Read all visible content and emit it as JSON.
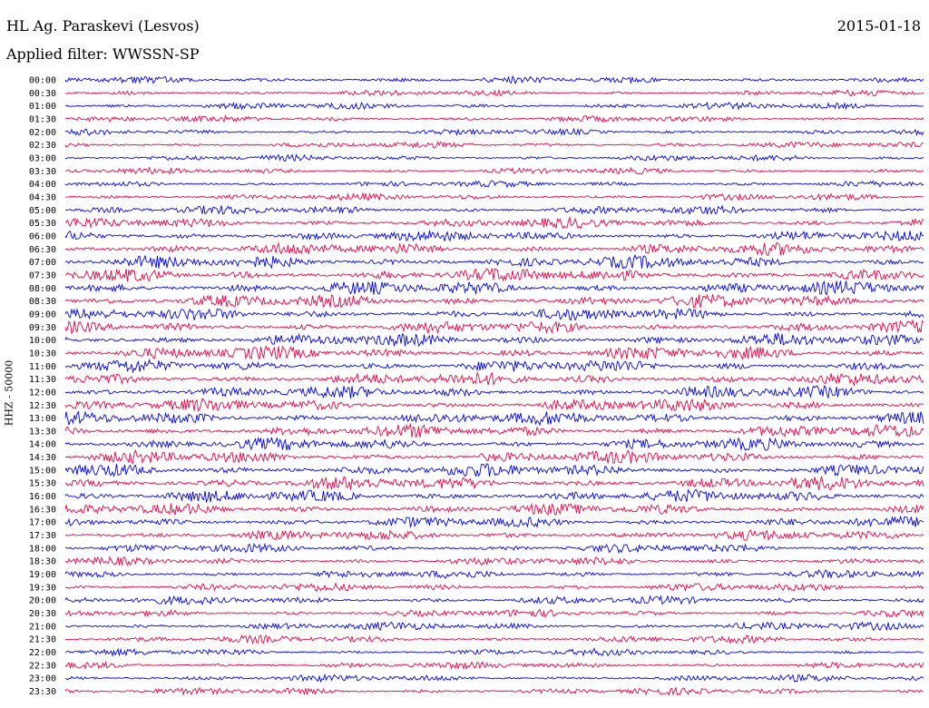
{
  "header": {
    "station": "HL Ag. Paraskevi (Lesvos)",
    "date": "2015-01-18",
    "filter": "Applied filter: WWSSN-SP"
  },
  "chart_data": {
    "type": "line",
    "title": "HL Ag. Paraskevi (Lesvos)",
    "ylabel": "HHZ - 50000",
    "trace_colors": [
      "#0000ee",
      "#ee0044"
    ],
    "rows": [
      {
        "label": "00:00",
        "level": 0.35
      },
      {
        "label": "00:30",
        "level": 0.3
      },
      {
        "label": "01:00",
        "level": 0.35
      },
      {
        "label": "01:30",
        "level": 0.3
      },
      {
        "label": "02:00",
        "level": 0.3
      },
      {
        "label": "02:30",
        "level": 0.3
      },
      {
        "label": "03:00",
        "level": 0.3
      },
      {
        "label": "03:30",
        "level": 0.3
      },
      {
        "label": "04:00",
        "level": 0.3
      },
      {
        "label": "04:30",
        "level": 0.35
      },
      {
        "label": "05:00",
        "level": 0.5
      },
      {
        "label": "05:30",
        "level": 0.6
      },
      {
        "label": "06:00",
        "level": 0.65
      },
      {
        "label": "06:30",
        "level": 0.75
      },
      {
        "label": "07:00",
        "level": 0.8
      },
      {
        "label": "07:30",
        "level": 0.85
      },
      {
        "label": "08:00",
        "level": 0.85
      },
      {
        "label": "08:30",
        "level": 0.8
      },
      {
        "label": "09:00",
        "level": 0.75
      },
      {
        "label": "09:30",
        "level": 0.75
      },
      {
        "label": "10:00",
        "level": 0.8
      },
      {
        "label": "10:30",
        "level": 0.85
      },
      {
        "label": "11:00",
        "level": 0.8
      },
      {
        "label": "11:30",
        "level": 0.8
      },
      {
        "label": "12:00",
        "level": 0.75
      },
      {
        "label": "12:30",
        "level": 0.8
      },
      {
        "label": "13:00",
        "level": 0.85
      },
      {
        "label": "13:30",
        "level": 0.8
      },
      {
        "label": "14:00",
        "level": 0.75
      },
      {
        "label": "14:30",
        "level": 0.8
      },
      {
        "label": "15:00",
        "level": 0.85
      },
      {
        "label": "15:30",
        "level": 0.85
      },
      {
        "label": "16:00",
        "level": 0.75
      },
      {
        "label": "16:30",
        "level": 0.7
      },
      {
        "label": "17:00",
        "level": 0.65
      },
      {
        "label": "17:30",
        "level": 0.6
      },
      {
        "label": "18:00",
        "level": 0.5
      },
      {
        "label": "18:30",
        "level": 0.45
      },
      {
        "label": "19:00",
        "level": 0.45
      },
      {
        "label": "19:30",
        "level": 0.45
      },
      {
        "label": "20:00",
        "level": 0.45
      },
      {
        "label": "20:30",
        "level": 0.4
      },
      {
        "label": "21:00",
        "level": 0.45
      },
      {
        "label": "21:30",
        "level": 0.4
      },
      {
        "label": "22:00",
        "level": 0.35
      },
      {
        "label": "22:30",
        "level": 0.35
      },
      {
        "label": "23:00",
        "level": 0.35
      },
      {
        "label": "23:30",
        "level": 0.35
      }
    ]
  }
}
